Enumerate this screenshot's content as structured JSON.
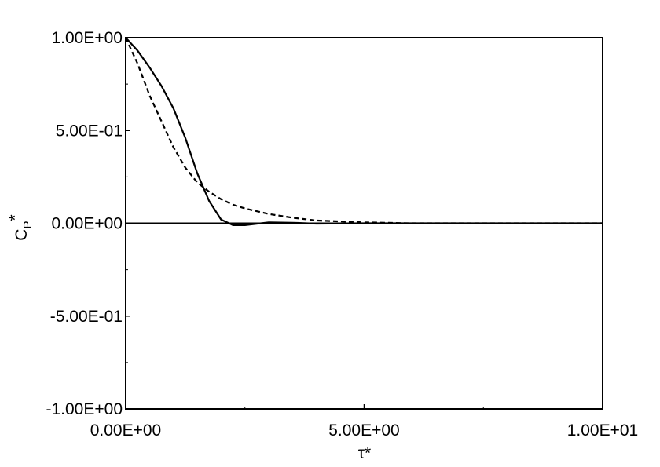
{
  "chart_data": {
    "type": "line",
    "xlabel": "τ*",
    "ylabel": {
      "base": "C",
      "sub": "P",
      "sup": "*"
    },
    "x": [
      0,
      0.25,
      0.5,
      0.75,
      1,
      1.25,
      1.5,
      1.75,
      2,
      2.25,
      2.5,
      3,
      3.5,
      4,
      5,
      6,
      10
    ],
    "series": [
      {
        "color": "#000000",
        "dash": "none",
        "values": [
          1.0,
          0.93,
          0.84,
          0.74,
          0.62,
          0.46,
          0.27,
          0.12,
          0.02,
          -0.01,
          -0.01,
          0.005,
          0.003,
          -0.002,
          0,
          0,
          0
        ]
      },
      {
        "color": "#000000",
        "dash": "6,4",
        "values": [
          1.0,
          0.86,
          0.69,
          0.55,
          0.41,
          0.3,
          0.22,
          0.17,
          0.13,
          0.1,
          0.08,
          0.05,
          0.03,
          0.015,
          0.005,
          0,
          0
        ]
      }
    ],
    "reference_line": 0,
    "xlim": [
      0,
      10
    ],
    "xticks": [
      {
        "value": 0,
        "label": "0.00E+00"
      },
      {
        "value": 5,
        "label": "5.00E+00"
      },
      {
        "value": 10,
        "label": "1.00E+01"
      }
    ],
    "xminor": [
      2.5,
      7.5
    ],
    "ylim": [
      -1,
      1
    ],
    "yticks": [
      {
        "value": -1,
        "label": "-1.00E+00"
      },
      {
        "value": -0.5,
        "label": "-5.00E-01"
      },
      {
        "value": 0,
        "label": "0.00E+00"
      },
      {
        "value": 0.5,
        "label": "5.00E-01"
      },
      {
        "value": 1,
        "label": "1.00E+00"
      }
    ],
    "yminor": [
      -0.75,
      -0.25,
      0.25,
      0.75
    ],
    "grid": false
  }
}
